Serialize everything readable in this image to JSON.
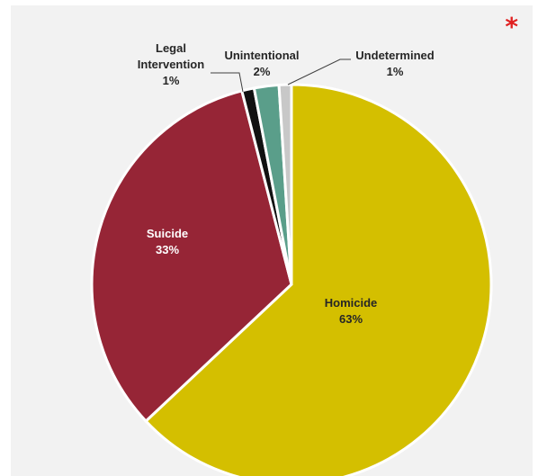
{
  "corner_mark": "*",
  "chart_data": {
    "type": "pie",
    "title": "",
    "slices": [
      {
        "label": "Homicide",
        "value_label": "63%",
        "value": 63,
        "color": "#d4bf00"
      },
      {
        "label": "Suicide",
        "value_label": "33%",
        "value": 33,
        "color": "#962536"
      },
      {
        "label": "Legal Intervention",
        "value_label": "1%",
        "value": 1,
        "color": "#111111"
      },
      {
        "label": "Unintentional",
        "value_label": "2%",
        "value": 2,
        "color": "#5a9e8a"
      },
      {
        "label": "Undetermined",
        "value_label": "1%",
        "value": 1,
        "color": "#c8c8c8"
      }
    ]
  }
}
